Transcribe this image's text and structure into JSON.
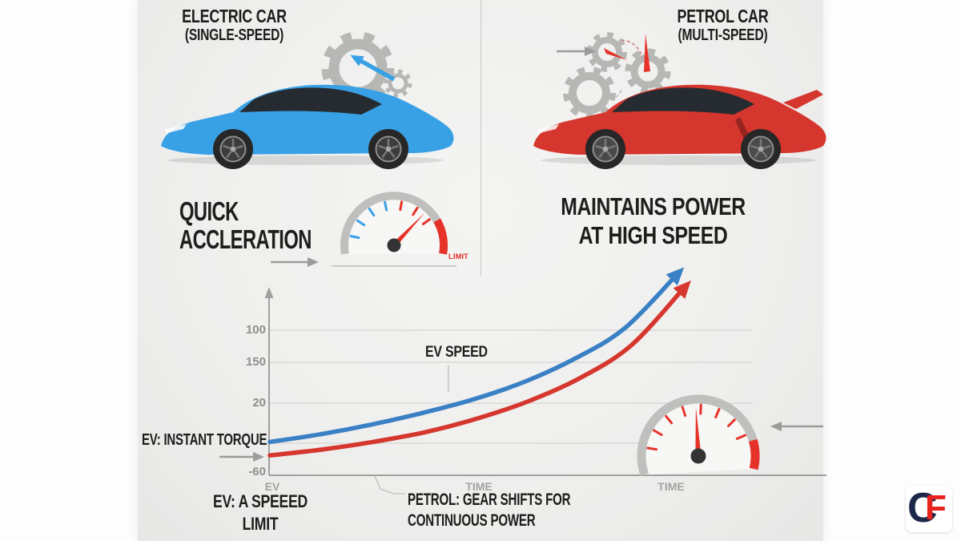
{
  "colors": {
    "ev_blue": "#38a1e6",
    "ev_curve": "#3a80c4",
    "petrol_red": "#d5362d",
    "gauge_red": "#e63229",
    "heading": "#1d1d1b",
    "logo_navy": "#1d2749",
    "logo_red": "#e6231c"
  },
  "left_panel": {
    "title_line1": "ELECTRIC CAR",
    "title_line2": "(SINGLE-SPEED)",
    "benefit_line1": "QUICK",
    "benefit_line2": "ACCLERATION",
    "gauge_label": "LIMIT"
  },
  "right_panel": {
    "title_line1": "PETROL CAR",
    "title_line2": "(MULTI-SPEED)",
    "benefit_line1": "MAINTAINS POWER",
    "benefit_line2": "AT HIGH SPEED"
  },
  "chart_data": {
    "type": "line",
    "title": "",
    "xlabel": "TIME",
    "ylabel": "",
    "ylim": [
      0,
      100
    ],
    "grid": true,
    "y_tick_labels": [
      "100",
      "150",
      "20",
      "-60"
    ],
    "x_tick_labels": [
      "EV",
      "TIME",
      "TIME"
    ],
    "series": [
      {
        "name": "EV SPEED",
        "color": "#3a80c4",
        "x": [
          0,
          0.125,
          0.25,
          0.375,
          0.5,
          0.625,
          0.75,
          0.875,
          1.0
        ],
        "values": [
          14,
          18,
          23,
          29,
          36,
          45,
          57,
          73,
          100
        ]
      },
      {
        "name": "PETROL",
        "color": "#d5362d",
        "x": [
          0,
          0.125,
          0.25,
          0.375,
          0.5,
          0.625,
          0.75,
          0.875,
          1.0
        ],
        "values": [
          7,
          10,
          14,
          19,
          26,
          35,
          47,
          64,
          93
        ]
      }
    ],
    "annotations": {
      "instant_torque": "EV: INSTANT TORQUE",
      "speed_limit_line1": "EV: A SPEEED",
      "speed_limit_line2": "LIMIT",
      "gear_shifts_line1": "PETROL: GEAR SHIFTS FOR",
      "gear_shifts_line2": "CONTINUOUS POWER"
    }
  },
  "logo": {
    "letter_c": "C",
    "letter_f": "F"
  }
}
